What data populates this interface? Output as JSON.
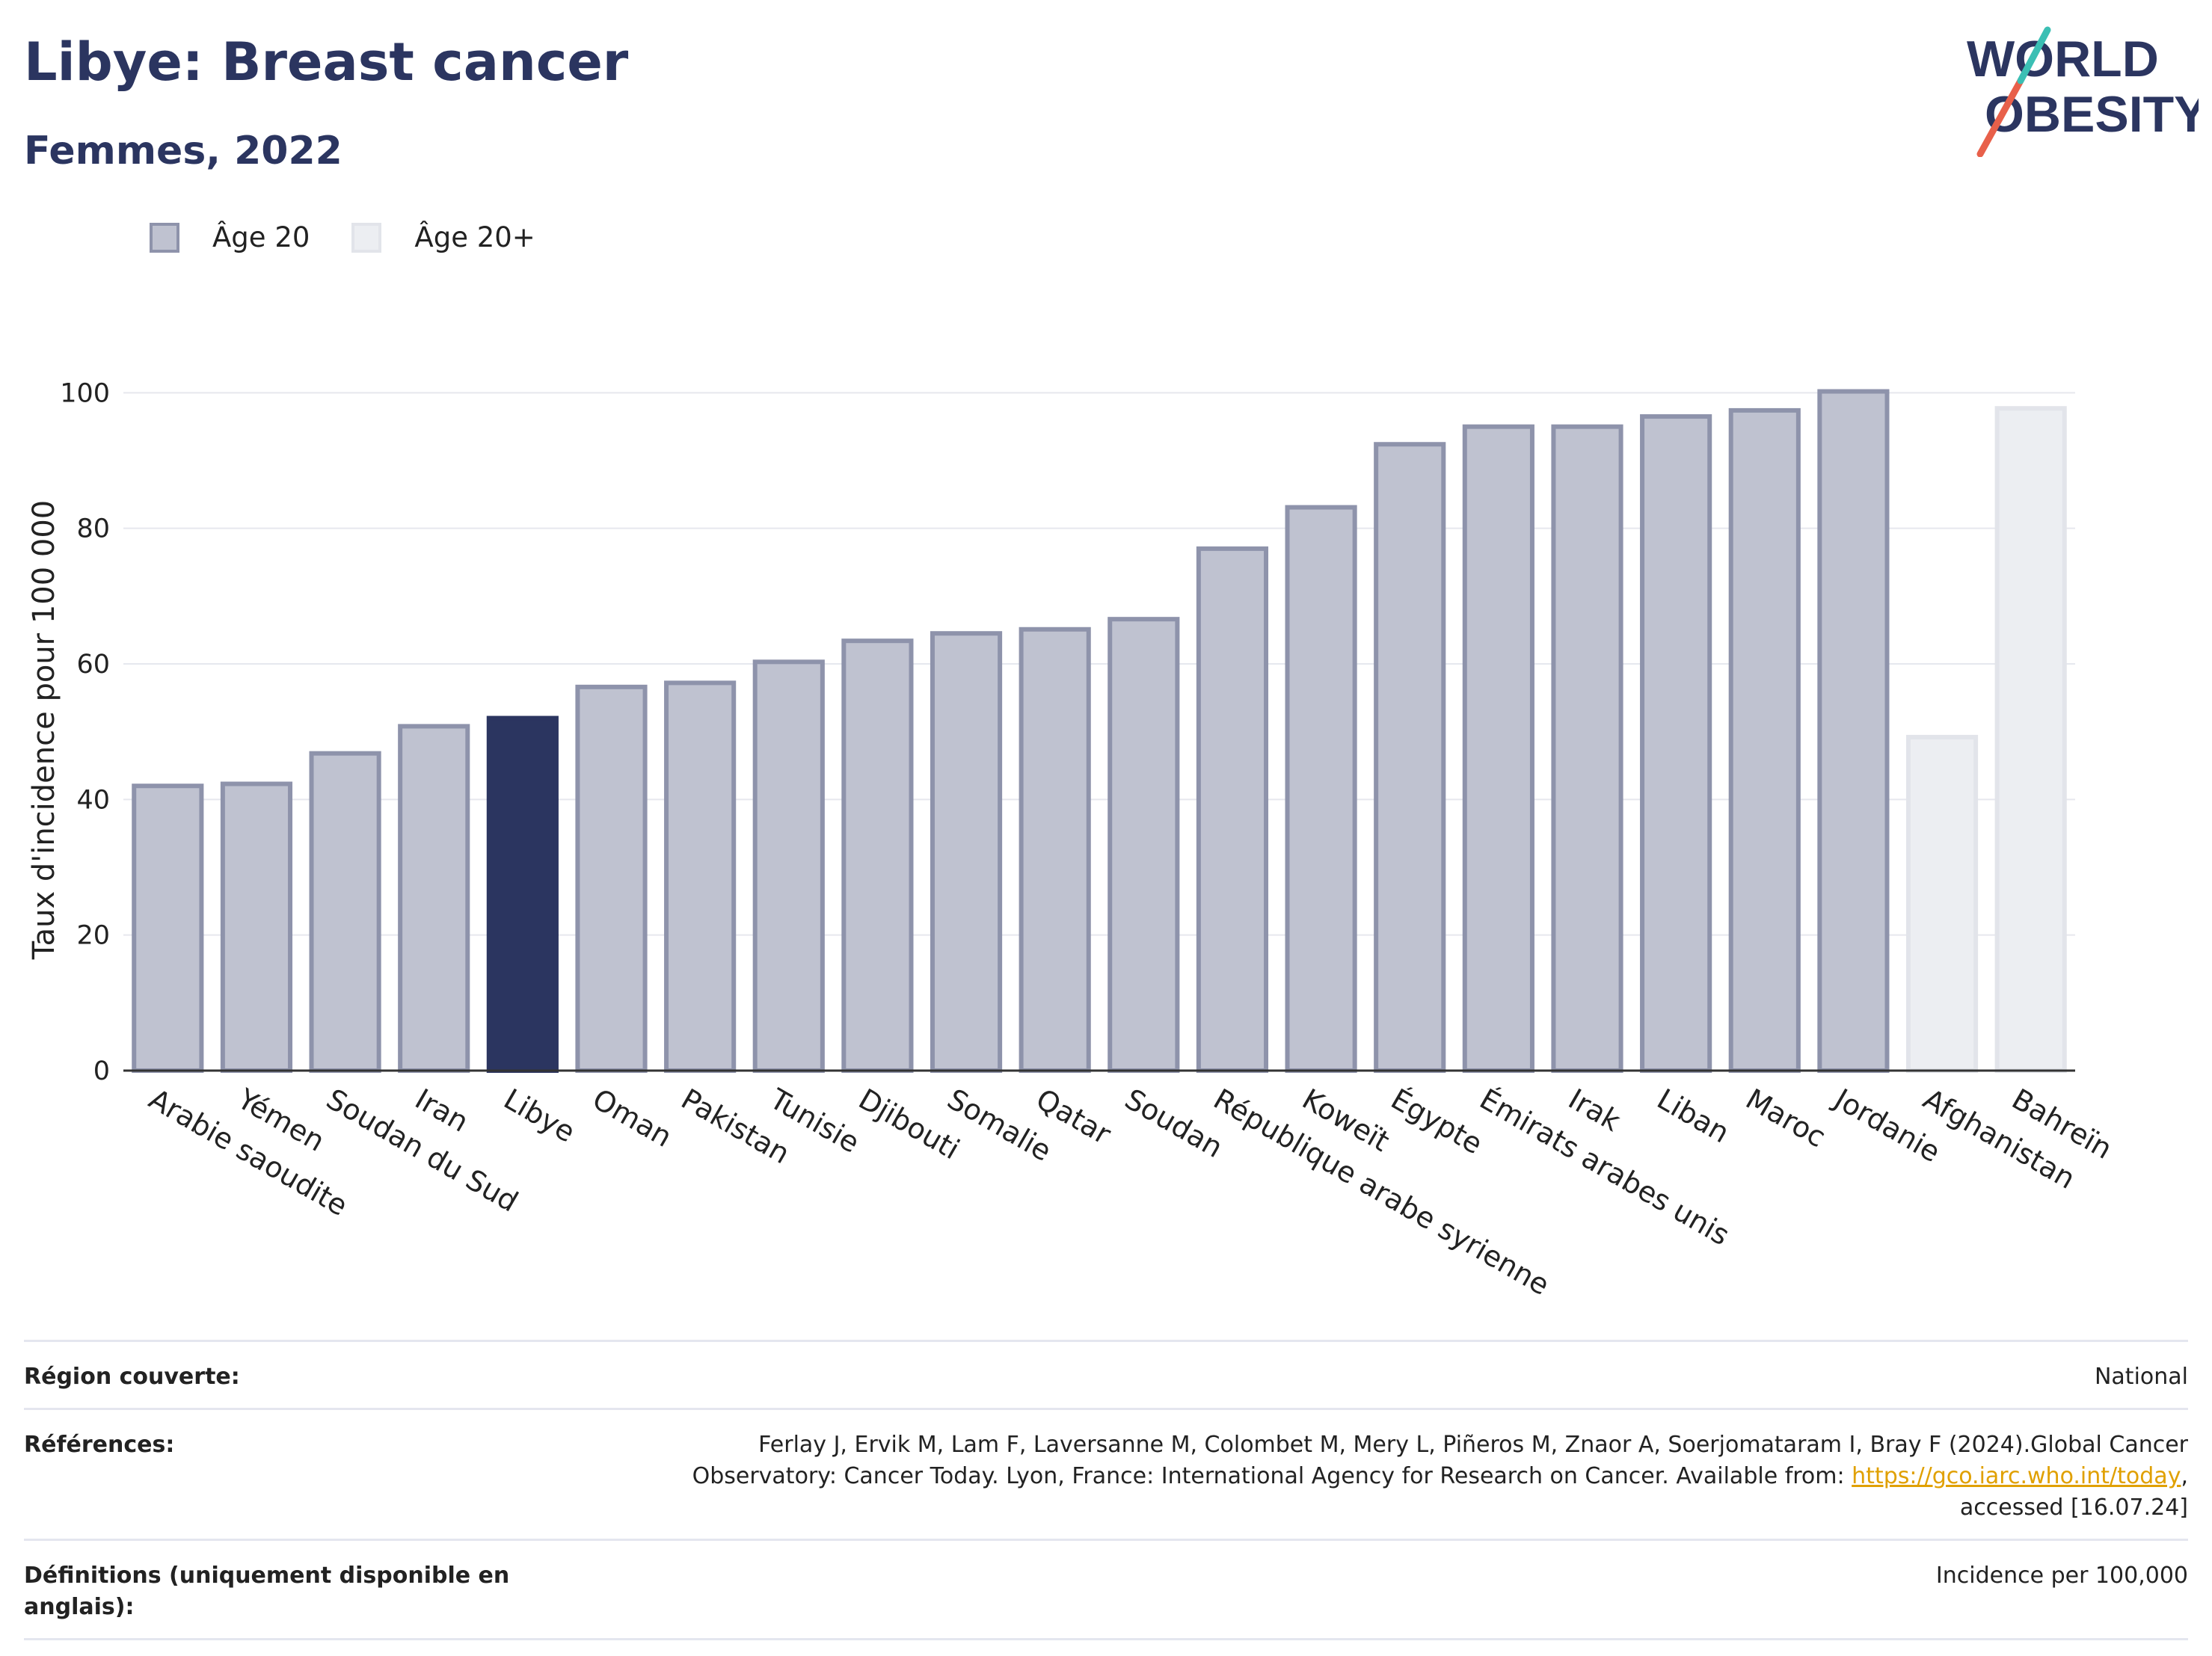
{
  "header": {
    "title": "Libye: Breast cancer",
    "subtitle": "Femmes, 2022",
    "logo_line1": "WORLD",
    "logo_line2": "OBESITY"
  },
  "legend": [
    {
      "label": "Âge 20",
      "fill": "#bfc2d0",
      "stroke": "#8e93ab"
    },
    {
      "label": "Âge 20+",
      "fill": "#eceef2",
      "stroke": "#e2e4ea"
    }
  ],
  "chart_data": {
    "type": "bar",
    "ylabel": "Taux d'incidence pour 100 000",
    "ylim": [
      0,
      105
    ],
    "yticks": [
      0,
      20,
      40,
      60,
      80,
      100
    ],
    "grid": true,
    "highlight_color": "#2b3560",
    "categories": [
      "Arabie saoudite",
      "Yémen",
      "Soudan du Sud",
      "Iran",
      "Libye",
      "Oman",
      "Pakistan",
      "Tunisie",
      "Djibouti",
      "Somalie",
      "Qatar",
      "Soudan",
      "République arabe syrienne",
      "Koweït",
      "Égypte",
      "Émirats arabes unis",
      "Irak",
      "Liban",
      "Maroc",
      "Jordanie",
      "Afghanistan",
      "Bahreïn"
    ],
    "values": [
      42,
      42.3,
      46.8,
      50.8,
      52,
      56.6,
      57.2,
      60.3,
      63.4,
      64.5,
      65.1,
      66.6,
      77,
      83.1,
      92.4,
      95,
      95,
      96.5,
      97.4,
      100.2,
      49.2,
      97.7
    ],
    "series_of_bar": [
      "Âge 20",
      "Âge 20",
      "Âge 20",
      "Âge 20",
      "Âge 20",
      "Âge 20",
      "Âge 20",
      "Âge 20",
      "Âge 20",
      "Âge 20",
      "Âge 20",
      "Âge 20",
      "Âge 20",
      "Âge 20",
      "Âge 20",
      "Âge 20",
      "Âge 20",
      "Âge 20",
      "Âge 20",
      "Âge 20",
      "Âge 20+",
      "Âge 20+"
    ],
    "highlight": "Libye"
  },
  "footer": {
    "region_label": "Région couverte:",
    "region_value": "National",
    "refs_label": "Références:",
    "refs_text_1": "Ferlay J, Ervik M, Lam F, Laversanne M, Colombet M, Mery L, Piñeros M, Znaor A, Soerjomataram I, Bray F (2024).Global Cancer Observatory: Cancer Today. Lyon, France: International Agency for Research on Cancer. Available from: ",
    "refs_link": "https://gco.iarc.who.int/today",
    "refs_text_2": ", accessed [16.07.24]",
    "defs_label": "Définitions (uniquement disponible en anglais):",
    "defs_value": "Incidence per 100,000"
  }
}
